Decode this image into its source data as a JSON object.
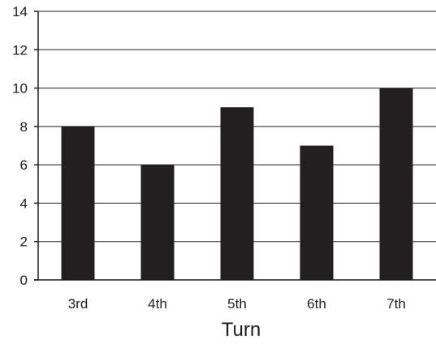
{
  "chart_data": {
    "type": "bar",
    "categories": [
      "3rd",
      "4th",
      "5th",
      "6th",
      "7th"
    ],
    "values": [
      8,
      6,
      9,
      7,
      10
    ],
    "title": "",
    "xlabel": "Turn",
    "ylabel": "",
    "ylim": [
      0,
      14
    ],
    "yticks": [
      0,
      2,
      4,
      6,
      8,
      10,
      12,
      14
    ],
    "grid": "horizontal",
    "bar_color": "#231f20"
  }
}
